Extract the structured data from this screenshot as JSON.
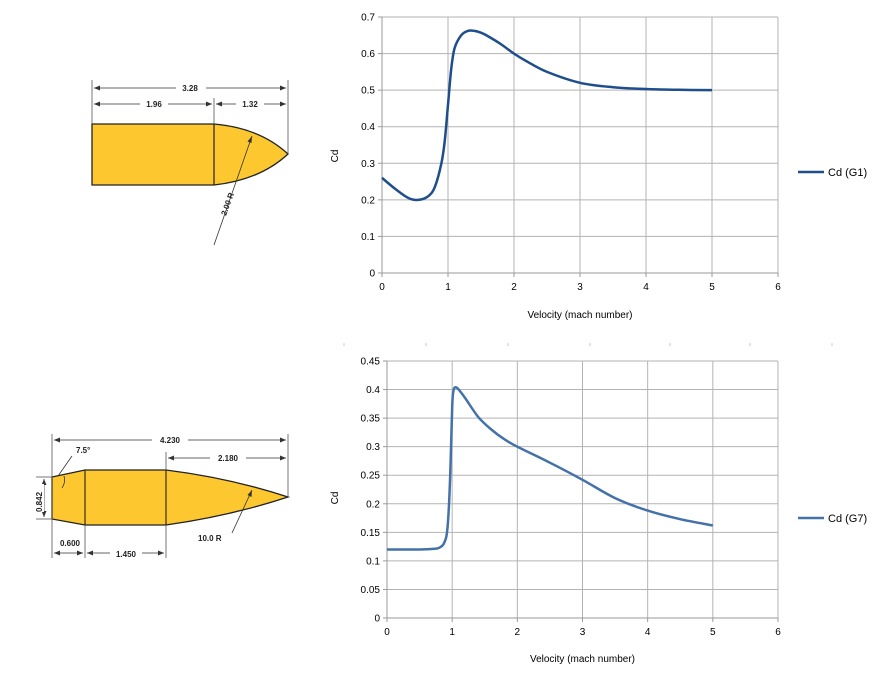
{
  "projectiles": {
    "g1": {
      "dims": {
        "total_length": "3.28",
        "body_length": "1.96",
        "nose_length": "1.32",
        "ogive_radius": "2.00 R"
      }
    },
    "g7": {
      "dims": {
        "total_length": "4.230",
        "nose_length": "2.180",
        "boattail_angle": "7.5°",
        "base_diameter": "0.842",
        "boattail_length": "0.600",
        "body_length": "1.450",
        "ogive_radius": "10.0 R"
      }
    }
  },
  "colors": {
    "g1_series": "#1f4e8c",
    "g7_series": "#4472a8",
    "projectile_fill": "#fdc72f",
    "gridline": "#b3b3b3"
  },
  "chart_data": [
    {
      "type": "line",
      "xlabel": "Velocity (mach number)",
      "ylabel": "Cd",
      "xlim": [
        0,
        6
      ],
      "ylim": [
        0,
        0.7
      ],
      "xticks": [
        0,
        1,
        2,
        3,
        4,
        5,
        6
      ],
      "yticks": [
        0,
        0.1,
        0.2,
        0.3,
        0.4,
        0.5,
        0.6,
        0.7
      ],
      "grid": true,
      "legend_position": "right",
      "series": [
        {
          "name": "Cd (G1)",
          "x": [
            0,
            0.2,
            0.4,
            0.55,
            0.7,
            0.8,
            0.9,
            0.95,
            1.0,
            1.05,
            1.1,
            1.2,
            1.3,
            1.4,
            1.5,
            1.6,
            1.8,
            2.0,
            2.2,
            2.5,
            3.0,
            3.5,
            4.0,
            4.5,
            5.0
          ],
          "y": [
            0.26,
            0.23,
            0.205,
            0.2,
            0.21,
            0.235,
            0.3,
            0.36,
            0.46,
            0.56,
            0.615,
            0.65,
            0.662,
            0.662,
            0.657,
            0.648,
            0.626,
            0.6,
            0.578,
            0.55,
            0.52,
            0.508,
            0.503,
            0.501,
            0.5
          ]
        }
      ]
    },
    {
      "type": "line",
      "xlabel": "Velocity (mach number)",
      "ylabel": "Cd",
      "xlim": [
        0,
        6
      ],
      "ylim": [
        0,
        0.45
      ],
      "xticks": [
        0,
        1,
        2,
        3,
        4,
        5,
        6
      ],
      "yticks": [
        0,
        0.05,
        0.1,
        0.15,
        0.2,
        0.25,
        0.3,
        0.35,
        0.4,
        0.45
      ],
      "grid": true,
      "legend_position": "right",
      "series": [
        {
          "name": "Cd (G7)",
          "x": [
            0,
            0.5,
            0.7,
            0.8,
            0.88,
            0.93,
            0.97,
            1.0,
            1.02,
            1.05,
            1.1,
            1.2,
            1.4,
            1.6,
            1.8,
            2.0,
            2.5,
            3.0,
            3.5,
            4.0,
            4.5,
            5.0
          ],
          "y": [
            0.12,
            0.12,
            0.121,
            0.123,
            0.132,
            0.16,
            0.25,
            0.37,
            0.398,
            0.404,
            0.4,
            0.385,
            0.352,
            0.33,
            0.313,
            0.3,
            0.272,
            0.242,
            0.21,
            0.188,
            0.173,
            0.162
          ]
        }
      ]
    }
  ]
}
